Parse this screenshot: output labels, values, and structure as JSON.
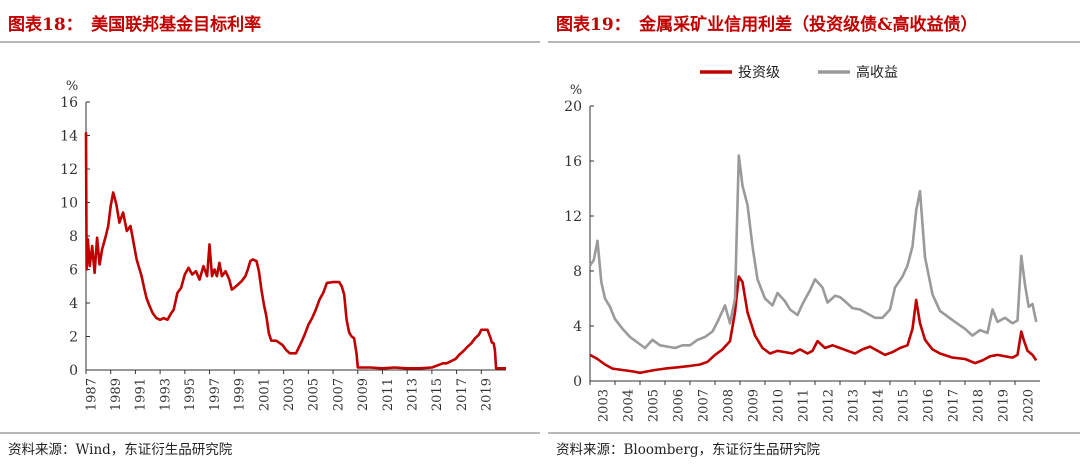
{
  "left": {
    "title": "图表18：　美国联邦基金目标利率",
    "source": "资料来源：Wind，东证衍生品研究院",
    "chart_data": {
      "type": "line",
      "unit_label": "%",
      "ylim": [
        0,
        16
      ],
      "yticks": [
        0,
        2,
        4,
        6,
        8,
        10,
        12,
        14,
        16
      ],
      "xlim": [
        1987,
        2021
      ],
      "xticks": [
        "1987",
        "1989",
        "1991",
        "1993",
        "1995",
        "1997",
        "1999",
        "2001",
        "2003",
        "2005",
        "2007",
        "2009",
        "2011",
        "2013",
        "2015",
        "2017",
        "2019"
      ],
      "color": "#c00000",
      "series": [
        {
          "name": "",
          "x": [
            1987.0,
            1987.05,
            1987.15,
            1987.3,
            1987.5,
            1987.7,
            1987.9,
            1988.1,
            1988.3,
            1988.6,
            1988.8,
            1989.0,
            1989.2,
            1989.45,
            1989.7,
            1990.0,
            1990.3,
            1990.6,
            1990.9,
            1991.1,
            1991.3,
            1991.5,
            1991.7,
            1991.9,
            1992.1,
            1992.4,
            1992.7,
            1993.0,
            1993.3,
            1993.6,
            1993.9,
            1994.1,
            1994.4,
            1994.7,
            1995.0,
            1995.3,
            1995.6,
            1995.9,
            1996.2,
            1996.5,
            1996.8,
            1997.0,
            1997.2,
            1997.4,
            1997.6,
            1997.8,
            1998.0,
            1998.3,
            1998.6,
            1998.8,
            1999.0,
            1999.3,
            1999.6,
            1999.9,
            2000.1,
            2000.3,
            2000.5,
            2000.8,
            2001.0,
            2001.2,
            2001.4,
            2001.6,
            2001.8,
            2002.0,
            2002.4,
            2002.9,
            2003.2,
            2003.5,
            2004.0,
            2004.4,
            2004.7,
            2005.0,
            2005.3,
            2005.6,
            2005.9,
            2006.2,
            2006.5,
            2007.0,
            2007.5,
            2007.7,
            2007.9,
            2008.1,
            2008.3,
            2008.5,
            2008.7,
            2008.9,
            2009.0,
            2010.0,
            2011.0,
            2012.0,
            2013.0,
            2014.0,
            2015.0,
            2015.9,
            2016.2,
            2016.9,
            2017.2,
            2017.5,
            2017.9,
            2018.2,
            2018.5,
            2018.8,
            2019.0,
            2019.5,
            2019.6,
            2019.75,
            2019.85,
            2020.0,
            2020.1,
            2020.2,
            2021.0
          ],
          "values": [
            14.2,
            6.0,
            7.8,
            6.2,
            7.4,
            5.8,
            7.9,
            6.3,
            7.2,
            8.0,
            8.6,
            9.8,
            10.6,
            9.9,
            8.8,
            9.4,
            8.3,
            8.6,
            7.4,
            6.6,
            6.1,
            5.6,
            4.9,
            4.3,
            3.9,
            3.4,
            3.1,
            3.0,
            3.1,
            3.0,
            3.4,
            3.6,
            4.6,
            4.9,
            5.7,
            6.1,
            5.7,
            5.9,
            5.4,
            6.2,
            5.6,
            7.5,
            5.6,
            6.0,
            5.6,
            6.4,
            5.6,
            5.9,
            5.4,
            4.8,
            4.9,
            5.1,
            5.3,
            5.6,
            6.0,
            6.5,
            6.6,
            6.5,
            5.9,
            4.8,
            3.9,
            3.2,
            2.2,
            1.75,
            1.75,
            1.5,
            1.2,
            1.0,
            1.0,
            1.6,
            2.1,
            2.7,
            3.1,
            3.6,
            4.2,
            4.6,
            5.2,
            5.25,
            5.25,
            5.0,
            4.5,
            3.0,
            2.25,
            2.0,
            1.9,
            1.0,
            0.15,
            0.15,
            0.1,
            0.15,
            0.1,
            0.1,
            0.15,
            0.4,
            0.4,
            0.65,
            0.9,
            1.1,
            1.4,
            1.6,
            1.9,
            2.1,
            2.4,
            2.4,
            2.2,
            1.9,
            1.65,
            1.6,
            1.2,
            0.1,
            0.1
          ]
        }
      ]
    }
  },
  "right": {
    "title": "图表19：　金属采矿业信用利差（投资级债&高收益债）",
    "source": "资料来源：Bloomberg，东证衍生品研究院",
    "chart_data": {
      "type": "line",
      "unit_label": "%",
      "ylim": [
        0,
        20
      ],
      "yticks": [
        0,
        4,
        8,
        12,
        16,
        20
      ],
      "xlim": [
        2003,
        2021
      ],
      "xticks": [
        "2003",
        "2004",
        "2005",
        "2006",
        "2007",
        "2008",
        "2009",
        "2010",
        "2011",
        "2012",
        "2013",
        "2014",
        "2015",
        "2016",
        "2017",
        "2018",
        "2019",
        "2020"
      ],
      "legend_position": "top",
      "series": [
        {
          "name": "投资级",
          "color": "#c00000",
          "x": [
            2003.0,
            2003.3,
            2003.6,
            2003.9,
            2004.3,
            2004.7,
            2005.0,
            2005.3,
            2005.6,
            2006.0,
            2006.5,
            2007.0,
            2007.4,
            2007.7,
            2008.0,
            2008.3,
            2008.6,
            2008.8,
            2008.95,
            2009.1,
            2009.3,
            2009.6,
            2009.9,
            2010.2,
            2010.5,
            2010.8,
            2011.1,
            2011.4,
            2011.7,
            2011.9,
            2012.1,
            2012.4,
            2012.7,
            2013.0,
            2013.3,
            2013.6,
            2013.9,
            2014.2,
            2014.5,
            2014.8,
            2015.1,
            2015.4,
            2015.7,
            2015.9,
            2016.05,
            2016.2,
            2016.4,
            2016.7,
            2017.0,
            2017.5,
            2018.0,
            2018.4,
            2018.7,
            2019.0,
            2019.3,
            2019.6,
            2019.9,
            2020.1,
            2020.25,
            2020.35,
            2020.5,
            2020.7,
            2020.85
          ],
          "values": [
            1.9,
            1.6,
            1.2,
            0.9,
            0.8,
            0.7,
            0.6,
            0.7,
            0.8,
            0.9,
            1.0,
            1.1,
            1.2,
            1.4,
            1.9,
            2.3,
            2.9,
            5.0,
            7.6,
            7.2,
            5.0,
            3.3,
            2.4,
            2.0,
            2.2,
            2.1,
            2.0,
            2.3,
            2.0,
            2.2,
            2.9,
            2.4,
            2.6,
            2.4,
            2.2,
            2.0,
            2.3,
            2.5,
            2.2,
            1.9,
            2.1,
            2.4,
            2.6,
            3.8,
            5.9,
            4.2,
            3.0,
            2.3,
            2.0,
            1.7,
            1.6,
            1.3,
            1.5,
            1.8,
            1.9,
            1.8,
            1.7,
            1.9,
            3.6,
            3.0,
            2.2,
            1.9,
            1.5
          ]
        },
        {
          "name": "高收益",
          "color": "#9a9a9a",
          "x": [
            2003.0,
            2003.15,
            2003.3,
            2003.45,
            2003.6,
            2003.8,
            2004.0,
            2004.3,
            2004.6,
            2004.9,
            2005.2,
            2005.5,
            2005.8,
            2006.1,
            2006.4,
            2006.7,
            2007.0,
            2007.3,
            2007.6,
            2007.9,
            2008.1,
            2008.4,
            2008.6,
            2008.8,
            2008.95,
            2009.1,
            2009.3,
            2009.5,
            2009.7,
            2010.0,
            2010.3,
            2010.5,
            2010.8,
            2011.0,
            2011.3,
            2011.5,
            2011.8,
            2012.0,
            2012.3,
            2012.5,
            2012.8,
            2013.0,
            2013.2,
            2013.5,
            2013.8,
            2014.1,
            2014.4,
            2014.7,
            2015.0,
            2015.2,
            2015.5,
            2015.7,
            2015.9,
            2016.05,
            2016.2,
            2016.4,
            2016.7,
            2017.0,
            2017.3,
            2017.6,
            2018.0,
            2018.3,
            2018.6,
            2018.9,
            2019.1,
            2019.3,
            2019.6,
            2019.9,
            2020.1,
            2020.25,
            2020.4,
            2020.55,
            2020.7,
            2020.85
          ],
          "values": [
            8.4,
            8.8,
            10.2,
            7.2,
            6.0,
            5.4,
            4.5,
            3.8,
            3.2,
            2.8,
            2.4,
            3.0,
            2.6,
            2.5,
            2.4,
            2.6,
            2.6,
            3.0,
            3.2,
            3.6,
            4.3,
            5.5,
            4.2,
            6.0,
            16.4,
            14.2,
            12.8,
            9.8,
            7.4,
            6.0,
            5.5,
            6.4,
            5.8,
            5.2,
            4.8,
            5.6,
            6.6,
            7.4,
            6.8,
            5.7,
            6.2,
            6.1,
            5.8,
            5.3,
            5.2,
            4.9,
            4.6,
            4.6,
            5.2,
            6.8,
            7.6,
            8.4,
            9.8,
            12.4,
            13.8,
            9.0,
            6.3,
            5.1,
            4.7,
            4.3,
            3.8,
            3.3,
            3.7,
            3.5,
            5.2,
            4.3,
            4.6,
            4.2,
            4.4,
            9.1,
            7.0,
            5.4,
            5.6,
            4.3
          ]
        }
      ]
    }
  }
}
